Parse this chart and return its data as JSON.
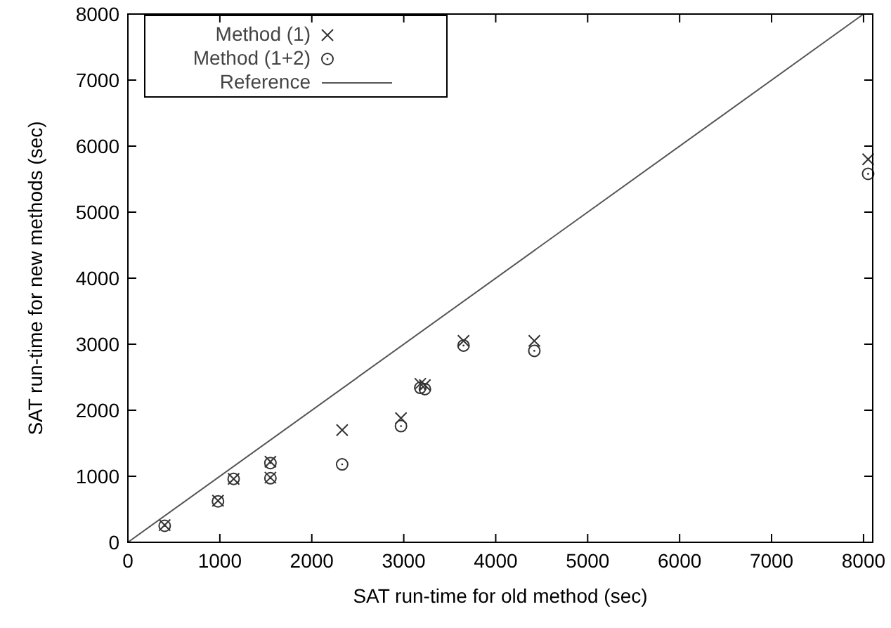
{
  "chart_data": {
    "type": "scatter",
    "xlabel": "SAT run-time for old method (sec)",
    "ylabel": "SAT run-time for new methods (sec)",
    "xlim": [
      0,
      8100
    ],
    "ylim": [
      0,
      8000
    ],
    "xticks": [
      0,
      1000,
      2000,
      3000,
      4000,
      5000,
      6000,
      7000,
      8000
    ],
    "yticks": [
      0,
      1000,
      2000,
      3000,
      4000,
      5000,
      6000,
      7000,
      8000
    ],
    "grid": false,
    "legend": "top left",
    "series": [
      {
        "name": "Method (1)",
        "marker": "cross",
        "color": "#333333",
        "x": [
          400,
          980,
          1150,
          1550,
          1550,
          2330,
          2970,
          3180,
          3230,
          3650,
          4420,
          8050
        ],
        "values": [
          260,
          630,
          960,
          1220,
          980,
          1700,
          1880,
          2400,
          2380,
          3050,
          3050,
          5800
        ]
      },
      {
        "name": "Method (1+2)",
        "marker": "circle",
        "color": "#333333",
        "x": [
          400,
          980,
          1150,
          1550,
          1550,
          2330,
          2970,
          3180,
          3230,
          3650,
          4420,
          8050
        ],
        "values": [
          250,
          620,
          960,
          1200,
          970,
          1180,
          1760,
          2340,
          2320,
          2980,
          2900,
          5580
        ]
      },
      {
        "name": "Reference",
        "type": "line",
        "marker": "none",
        "line_style": "solid",
        "color": "#555555",
        "x": [
          0,
          8000
        ],
        "values": [
          0,
          8000
        ]
      }
    ]
  }
}
